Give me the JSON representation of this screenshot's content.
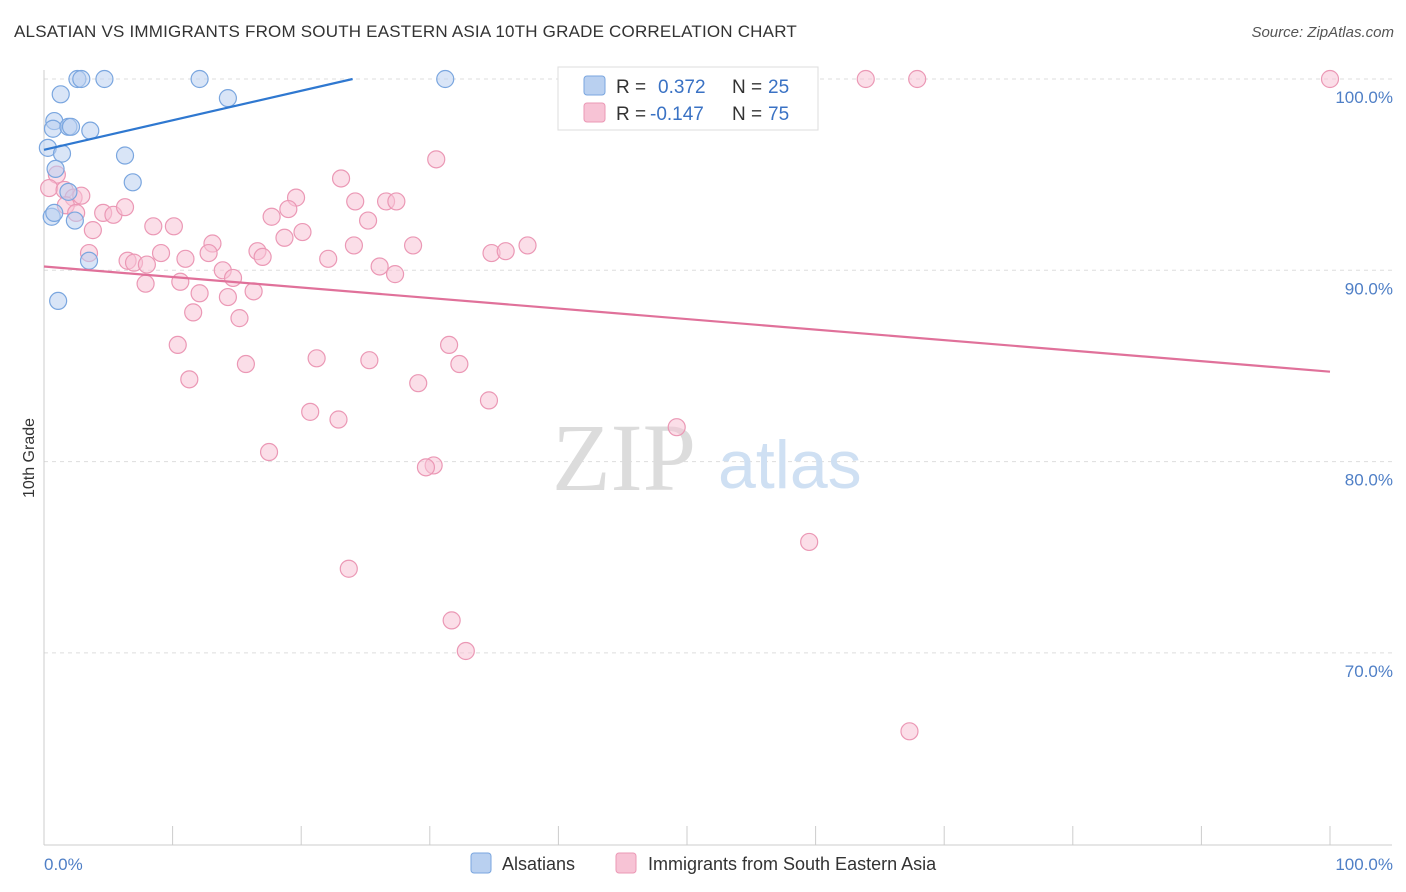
{
  "title": "ALSATIAN VS IMMIGRANTS FROM SOUTH EASTERN ASIA 10TH GRADE CORRELATION CHART",
  "source": "Source: ZipAtlas.com",
  "watermark": {
    "zip": "ZIP",
    "atlas": "atlas"
  },
  "colors": {
    "blue_fill": "#b9d0f0",
    "blue_stroke": "#7aa6df",
    "blue_line": "#2f78d0",
    "pink_fill": "#f7c3d5",
    "pink_stroke": "#eb98b5",
    "pink_line": "#e0719a",
    "grid": "#dddddd",
    "axis": "#cccccc",
    "tick_text": "#4f7fc6"
  },
  "legend": {
    "blue": {
      "r_label": "R =",
      "r_value": "0.372",
      "n_label": "N =",
      "n_value": "25"
    },
    "pink": {
      "r_label": "R =",
      "r_value": "-0.147",
      "n_label": "N =",
      "n_value": "75"
    }
  },
  "chart_data": {
    "type": "scatter",
    "xlabel": "",
    "ylabel": "10th Grade",
    "xlim": [
      0,
      100
    ],
    "ylim": [
      60,
      100
    ],
    "x_tick_labels": [
      "0.0%",
      "100.0%"
    ],
    "y_ticks": [
      {
        "value": 100,
        "label": "100.0%"
      },
      {
        "value": 90,
        "label": "90.0%"
      },
      {
        "value": 80,
        "label": "80.0%"
      },
      {
        "value": 70,
        "label": "70.0%"
      }
    ],
    "series": [
      {
        "name": "Alsatians",
        "color": "blue",
        "trend": {
          "x1": 0,
          "y1": 96.3,
          "x2": 24,
          "y2": 100
        },
        "points": [
          [
            2.6,
            100
          ],
          [
            2.9,
            100
          ],
          [
            4.7,
            100
          ],
          [
            12.1,
            100
          ],
          [
            31.2,
            100
          ],
          [
            1.3,
            99.2
          ],
          [
            14.3,
            99.0
          ],
          [
            0.8,
            97.8
          ],
          [
            0.7,
            97.4
          ],
          [
            1.9,
            97.5
          ],
          [
            2.1,
            97.5
          ],
          [
            3.6,
            97.3
          ],
          [
            0.3,
            96.4
          ],
          [
            1.4,
            96.1
          ],
          [
            6.3,
            96.0
          ],
          [
            0.9,
            95.3
          ],
          [
            6.9,
            94.6
          ],
          [
            1.9,
            94.1
          ],
          [
            0.6,
            92.8
          ],
          [
            0.8,
            93.0
          ],
          [
            2.4,
            92.6
          ],
          [
            3.5,
            90.5
          ],
          [
            1.1,
            88.4
          ]
        ]
      },
      {
        "name": "Immigrants from South Eastern Asia",
        "color": "pink",
        "trend": {
          "x1": 0,
          "y1": 90.2,
          "x2": 100,
          "y2": 84.7
        },
        "points": [
          [
            63.9,
            100
          ],
          [
            67.9,
            100
          ],
          [
            100,
            100
          ],
          [
            30.5,
            95.8
          ],
          [
            23.1,
            94.8
          ],
          [
            1.0,
            95.0
          ],
          [
            0.4,
            94.3
          ],
          [
            1.6,
            94.2
          ],
          [
            2.3,
            93.8
          ],
          [
            2.9,
            93.9
          ],
          [
            1.7,
            93.4
          ],
          [
            2.5,
            93.0
          ],
          [
            4.6,
            93.0
          ],
          [
            5.4,
            92.9
          ],
          [
            6.3,
            93.3
          ],
          [
            19.6,
            93.8
          ],
          [
            24.2,
            93.6
          ],
          [
            26.6,
            93.6
          ],
          [
            27.4,
            93.6
          ],
          [
            19.0,
            93.2
          ],
          [
            17.7,
            92.8
          ],
          [
            25.2,
            92.6
          ],
          [
            8.5,
            92.3
          ],
          [
            10.1,
            92.3
          ],
          [
            3.8,
            92.1
          ],
          [
            20.1,
            92.0
          ],
          [
            18.7,
            91.7
          ],
          [
            13.1,
            91.4
          ],
          [
            24.1,
            91.3
          ],
          [
            28.7,
            91.3
          ],
          [
            37.6,
            91.3
          ],
          [
            16.6,
            91.0
          ],
          [
            17.0,
            90.7
          ],
          [
            3.5,
            90.9
          ],
          [
            9.1,
            90.9
          ],
          [
            12.8,
            90.9
          ],
          [
            34.8,
            90.9
          ],
          [
            35.9,
            91.0
          ],
          [
            6.5,
            90.5
          ],
          [
            7.0,
            90.4
          ],
          [
            8.0,
            90.3
          ],
          [
            11.0,
            90.6
          ],
          [
            22.1,
            90.6
          ],
          [
            26.1,
            90.2
          ],
          [
            27.3,
            89.8
          ],
          [
            13.9,
            90.0
          ],
          [
            14.7,
            89.6
          ],
          [
            7.9,
            89.3
          ],
          [
            10.6,
            89.4
          ],
          [
            12.1,
            88.8
          ],
          [
            14.3,
            88.6
          ],
          [
            16.3,
            88.9
          ],
          [
            11.6,
            87.8
          ],
          [
            15.2,
            87.5
          ],
          [
            10.4,
            86.1
          ],
          [
            31.5,
            86.1
          ],
          [
            21.2,
            85.4
          ],
          [
            25.3,
            85.3
          ],
          [
            15.7,
            85.1
          ],
          [
            32.3,
            85.1
          ],
          [
            11.3,
            84.3
          ],
          [
            29.1,
            84.1
          ],
          [
            34.6,
            83.2
          ],
          [
            20.7,
            82.6
          ],
          [
            22.9,
            82.2
          ],
          [
            49.2,
            81.8
          ],
          [
            17.5,
            80.5
          ],
          [
            30.3,
            79.8
          ],
          [
            29.7,
            79.7
          ],
          [
            59.5,
            75.8
          ],
          [
            23.7,
            74.4
          ],
          [
            31.7,
            71.7
          ],
          [
            32.8,
            70.1
          ],
          [
            67.3,
            65.9
          ]
        ]
      }
    ]
  }
}
